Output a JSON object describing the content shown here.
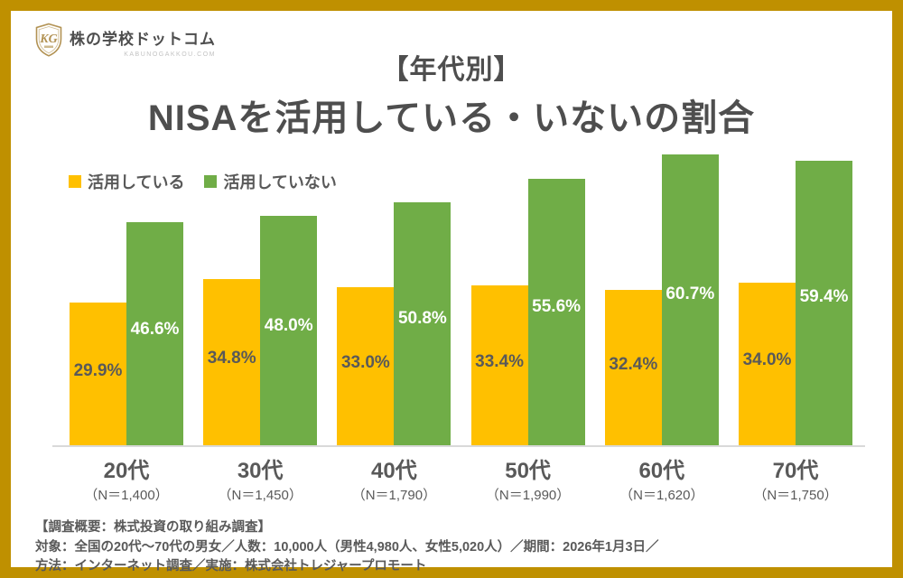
{
  "colors": {
    "frame_border": "#BF9000",
    "using_bar": "#FFC000",
    "not_using_bar": "#70AD47",
    "text_gray": "#595959",
    "axis_line": "#d9d9d9",
    "logo_gold": "#b29253"
  },
  "logo": {
    "monogram": "KG",
    "brand": "株の学校ドットコム",
    "domain": "KABUNOGAKKOU.COM"
  },
  "title": {
    "line1": "【年代別】",
    "line2": "NISAを活用している・いないの割合"
  },
  "chart_data": {
    "type": "bar",
    "categories": [
      "20代",
      "30代",
      "40代",
      "50代",
      "60代",
      "70代"
    ],
    "sample_sizes": [
      "（N＝1,400）",
      "（N＝1,450）",
      "（N＝1,790）",
      "（N＝1,990）",
      "（N＝1,620）",
      "（N＝1,750）"
    ],
    "series": [
      {
        "name": "活用している",
        "color": "#FFC000",
        "label_color": "#595959",
        "values": [
          29.9,
          34.8,
          33.0,
          33.4,
          32.4,
          34.0
        ]
      },
      {
        "name": "活用していない",
        "color": "#70AD47",
        "label_color": "#ffffff",
        "values": [
          46.6,
          48.0,
          50.8,
          55.6,
          60.7,
          59.4
        ]
      }
    ],
    "value_suffix": "%",
    "ylim": [
      0,
      68
    ],
    "grid": false,
    "legend_position": "top-left"
  },
  "footer": {
    "line1": "【調査概要：株式投資の取り組み調査】",
    "line2": "対象：全国の20代〜70代の男女／人数：10,000人（男性4,980人、女性5,020人）／期間：2026年1月3日／",
    "line3": "方法：インターネット調査／実施：株式会社トレジャープロモート"
  }
}
